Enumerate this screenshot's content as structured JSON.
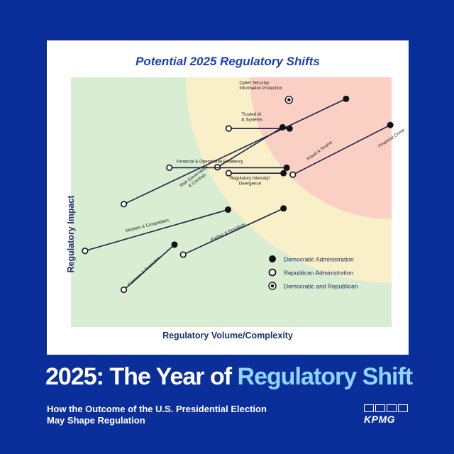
{
  "chart_data": {
    "type": "scatter",
    "title": "Potential 2025 Regulatory Shifts",
    "xlabel": "Regulatory  Volume/Complexity",
    "ylabel": "Regulatory  Impact",
    "xlim": [
      0,
      100
    ],
    "ylim": [
      0,
      100
    ],
    "grid": false,
    "legend_position": "bottom-right",
    "zones": [
      "low-impact",
      "medium-impact",
      "high-impact"
    ],
    "colors": {
      "zone_low": "#d9edd3",
      "zone_mid": "#f9efc8",
      "zone_high": "#fad0c4",
      "line": "#1c2440",
      "marker": "#111111"
    },
    "legend": [
      {
        "key": "dem",
        "label": "Democratic Administration"
      },
      {
        "key": "rep",
        "label": "Republican Administration"
      },
      {
        "key": "both",
        "label": "Democratic and Republican"
      }
    ],
    "series": [
      {
        "name": "Cyber Security/ Information Protection",
        "label_lines": [
          "Cyber Security/",
          "Information Protection"
        ],
        "both": [
          68.0,
          91.0
        ]
      },
      {
        "name": "Trusted AI & Systems",
        "label_lines": [
          "Trusted AI",
          "& Systems"
        ],
        "dem": [
          68.2,
          79.5
        ],
        "rep": [
          49.2,
          79.5
        ]
      },
      {
        "name": "Risk Governance & Controls",
        "label_lines": [
          "Risk Governance",
          "& Controls"
        ],
        "dem": [
          85.8,
          91.4
        ],
        "rep": [
          16.5,
          49.2
        ]
      },
      {
        "name": "Fraud & Scams",
        "label_lines": [
          "Fraud & Scams"
        ],
        "dem": [
          66.0,
          80.0
        ],
        "rep": [
          45.7,
          64.0
        ]
      },
      {
        "name": "Financial & Operational Resiliency",
        "label_lines": [
          "Financial & Operational Resiliency"
        ],
        "dem": [
          67.3,
          63.8
        ],
        "rep": [
          30.7,
          63.8
        ]
      },
      {
        "name": "Financial Crime",
        "label_lines": [
          "Financial Crime"
        ],
        "dem": [
          99.6,
          80.9
        ],
        "rep": [
          69.2,
          61.0
        ]
      },
      {
        "name": "Regulatory Intensity/ Divergence",
        "label_lines": [
          "Regulatory Intensity/",
          "Divergence"
        ],
        "dem": [
          66.3,
          61.6
        ],
        "rep": [
          49.2,
          61.6
        ]
      },
      {
        "name": "Markets & Competition",
        "label_lines": [
          "Markets & Competition"
        ],
        "dem": [
          49.0,
          47.0
        ],
        "rep": [
          4.4,
          30.5
        ]
      },
      {
        "name": "Parties & Providers",
        "label_lines": [
          "Parties & Providers"
        ],
        "dem": [
          66.3,
          47.5
        ],
        "rep": [
          35.0,
          29.0
        ]
      },
      {
        "name": "Fairness & Protection",
        "label_lines": [
          "Fairness & Protection"
        ],
        "dem": [
          32.3,
          33.0
        ],
        "rep": [
          16.5,
          14.9
        ]
      }
    ]
  },
  "footer": {
    "headline_main": "2025: The Year of ",
    "headline_accent": "Regulatory Shift",
    "subline_1": "How the Outcome of the U.S. Presidential Election",
    "subline_2": "May Shape Regulation",
    "logo_text": "KPMG"
  }
}
